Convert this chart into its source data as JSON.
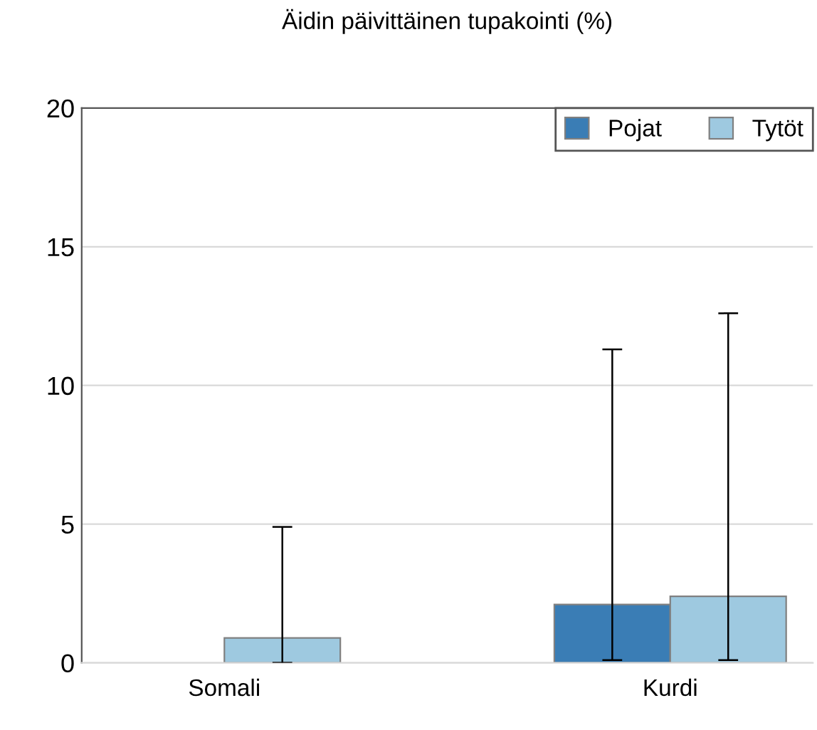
{
  "chart_data": {
    "type": "bar",
    "title": "Äidin päivittäinen tupakointi (%)",
    "categories": [
      "Somali",
      "Kurdi"
    ],
    "series": [
      {
        "name": "Pojat",
        "color": "#3a7db5",
        "values": [
          null,
          2.1
        ],
        "errors": [
          null,
          [
            0.1,
            11.3
          ]
        ]
      },
      {
        "name": "Tytöt",
        "color": "#9ec9e0",
        "values": [
          0.9,
          2.4
        ],
        "errors": [
          [
            0,
            4.9
          ],
          [
            0.1,
            12.6
          ]
        ]
      }
    ],
    "ylim": [
      0,
      20
    ],
    "yticks": [
      0,
      5,
      10,
      15,
      20
    ],
    "grid": "y",
    "legend": "top right"
  }
}
